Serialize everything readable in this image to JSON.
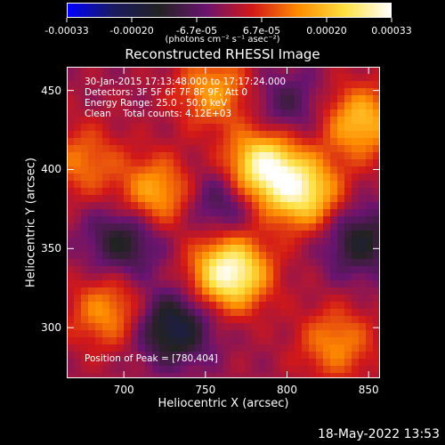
{
  "colorbar": {
    "ticks": [
      "-0.00033",
      "-0.00020",
      "-6.7e-05",
      "6.7e-05",
      "0.00020",
      "0.00033"
    ],
    "units_label": "(photons cm⁻² s⁻¹ asec⁻²)",
    "stops": [
      "#0000ff",
      "#1a1a60",
      "#222222",
      "#6a1470",
      "#d21818",
      "#ff8c00",
      "#ffe040",
      "#ffffff"
    ]
  },
  "chart_data": {
    "type": "heatmap",
    "title": "Reconstructed RHESSI Image",
    "xlabel": "Heliocentric X (arcsec)",
    "ylabel": "Heliocentric Y (arcsec)",
    "xlim": [
      665,
      857
    ],
    "ylim": [
      268,
      465
    ],
    "xticks": [
      700,
      750,
      800,
      850
    ],
    "yticks": [
      300,
      350,
      400,
      450
    ],
    "colorbar_range": [
      -0.00033,
      0.00033
    ],
    "peak": [
      780,
      404
    ],
    "bright_regions": [
      {
        "x": 765,
        "y": 335,
        "level": 0.00033
      },
      {
        "x": 785,
        "y": 402,
        "level": 0.0003
      },
      {
        "x": 810,
        "y": 385,
        "level": 0.00025
      },
      {
        "x": 720,
        "y": 385,
        "level": 0.00018
      },
      {
        "x": 845,
        "y": 430,
        "level": 0.0002
      },
      {
        "x": 690,
        "y": 310,
        "level": 0.00015
      },
      {
        "x": 755,
        "y": 450,
        "level": 0.00016
      },
      {
        "x": 830,
        "y": 290,
        "level": 0.00014
      },
      {
        "x": 675,
        "y": 405,
        "level": 0.00012
      }
    ],
    "dark_regions": [
      {
        "x": 730,
        "y": 300,
        "level": -0.0002
      },
      {
        "x": 700,
        "y": 355,
        "level": -0.00015
      },
      {
        "x": 760,
        "y": 380,
        "level": -0.00012
      },
      {
        "x": 845,
        "y": 355,
        "level": -0.00015
      },
      {
        "x": 800,
        "y": 440,
        "level": -0.0001
      }
    ]
  },
  "info": {
    "line1": "30-Jan-2015 17:13:48.000 to 17:17:24.000",
    "line2": "Detectors: 3F 5F 6F 7F 8F 9F, Att 0",
    "line3": "Energy Range: 25.0 - 50.0 keV",
    "line4": "Clean    Total counts: 4.12E+03",
    "peak_label": "Position of Peak = [780,404]"
  },
  "timestamp": "18-May-2022 13:53"
}
